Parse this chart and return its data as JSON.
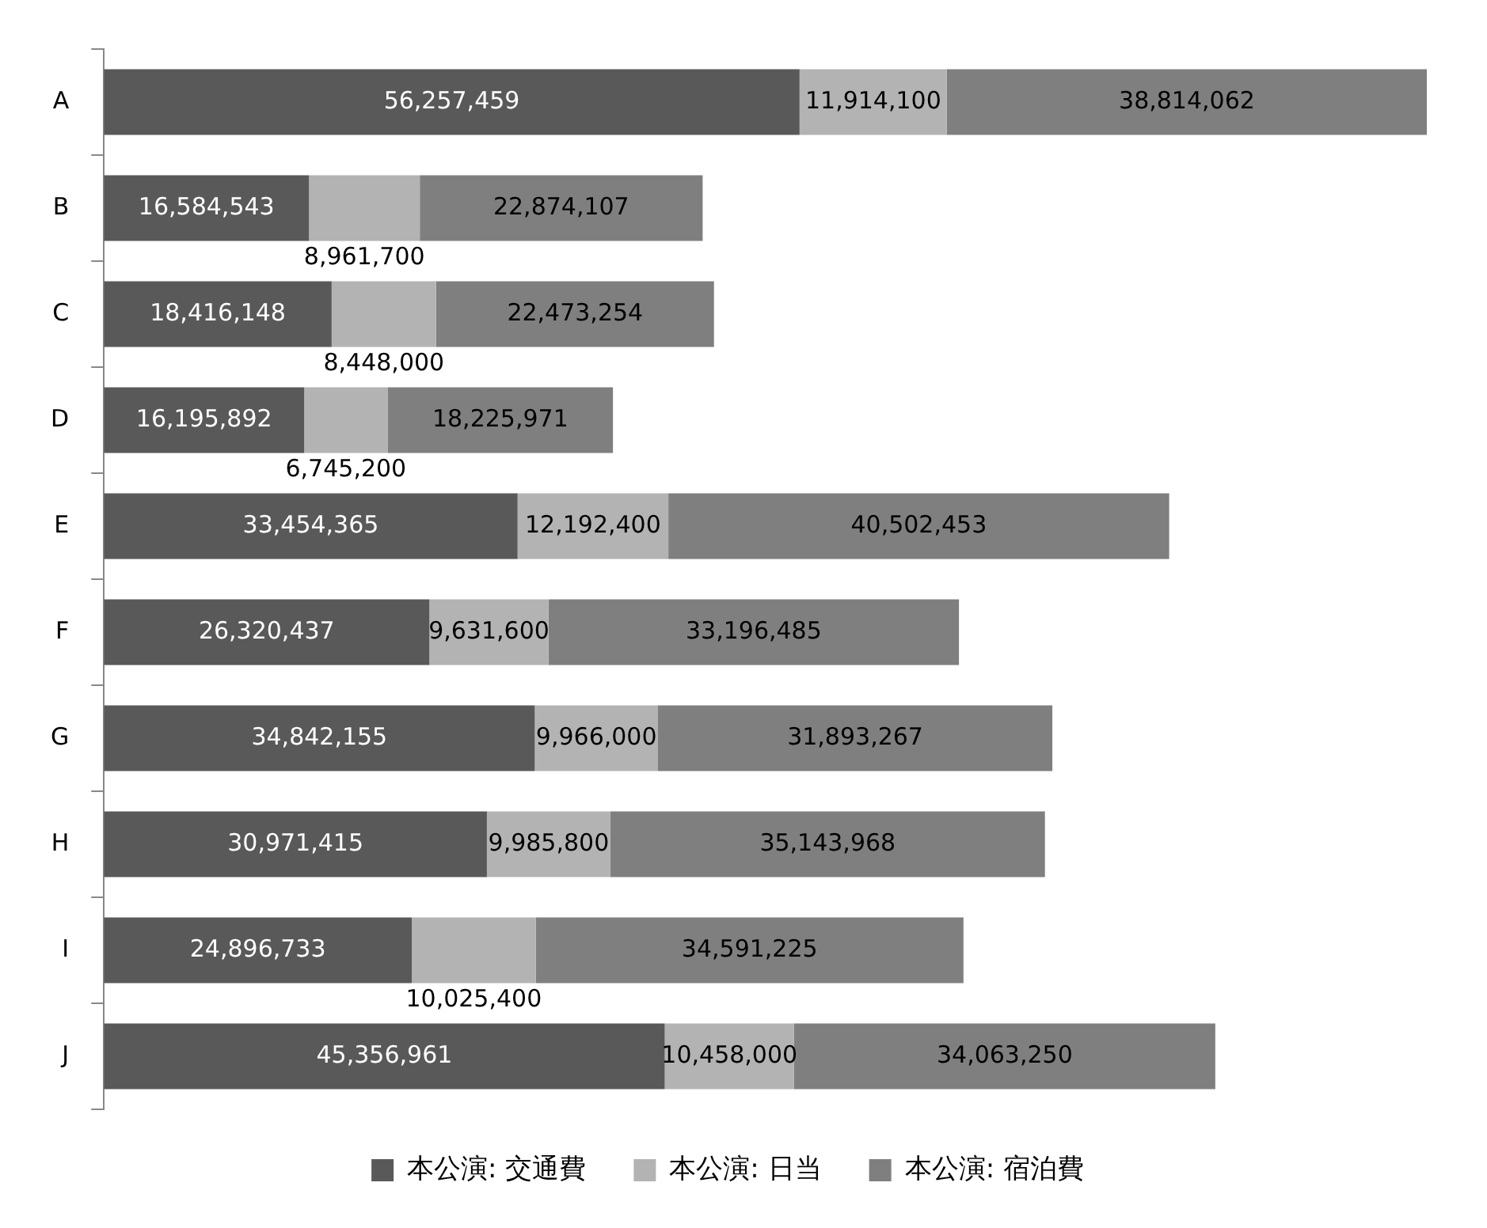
{
  "chart_data": {
    "type": "bar",
    "orientation": "horizontal",
    "stacked": true,
    "legend": "bottom",
    "categories": [
      "A",
      "B",
      "C",
      "D",
      "E",
      "F",
      "G",
      "H",
      "I",
      "J"
    ],
    "series": [
      {
        "name": "本公演: 交通費",
        "color": "#595959",
        "values": [
          56257459,
          16584543,
          18416148,
          16195892,
          33454365,
          26320437,
          34842155,
          30971415,
          24896733,
          45356961
        ],
        "value_labels": [
          "56,257,459",
          "16,584,543",
          "18,416,148",
          "16,195,892",
          "33,454,365",
          "26,320,437",
          "34,842,155",
          "30,971,415",
          "24,896,733",
          "45,356,961"
        ]
      },
      {
        "name": "本公演: 日当",
        "color": "#b3b3b3",
        "values": [
          11914100,
          8961700,
          8448000,
          6745200,
          12192400,
          9631600,
          9966000,
          9985800,
          10025400,
          10458000
        ],
        "value_labels": [
          "11,914,100",
          "8,961,700",
          "8,448,000",
          "6,745,200",
          "12,192,400",
          "9,631,600",
          "9,966,000",
          "9,985,800",
          "10,025,400",
          "10,458,000"
        ]
      },
      {
        "name": "本公演: 宿泊費",
        "color": "#7f7f7f",
        "values": [
          38814062,
          22874107,
          22473254,
          18225971,
          40502453,
          33196485,
          31893267,
          35143968,
          34591225,
          34063250
        ],
        "value_labels": [
          "38,814,062",
          "22,874,107",
          "22,473,254",
          "18,225,971",
          "40,502,453",
          "33,196,485",
          "31,893,267",
          "35,143,968",
          "34,591,225",
          "34,063,250"
        ]
      }
    ]
  }
}
